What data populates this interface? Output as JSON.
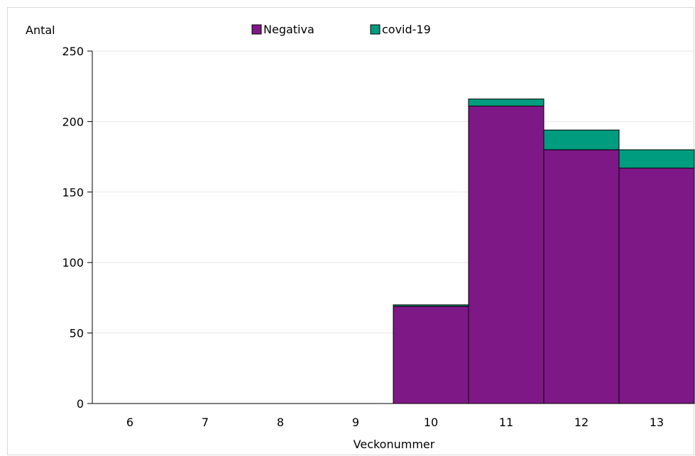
{
  "chart_data": {
    "type": "bar",
    "stacked": true,
    "ylabel": "Antal",
    "xlabel": "Veckonummer",
    "ylim": [
      0,
      250
    ],
    "yticks": [
      0,
      50,
      100,
      150,
      200,
      250
    ],
    "grid": true,
    "legend_position": "top-center",
    "categories": [
      "6",
      "7",
      "8",
      "9",
      "10",
      "11",
      "12",
      "13"
    ],
    "series": [
      {
        "name": "Negativa",
        "color": "#7f1887",
        "values": [
          0,
          0,
          0,
          0,
          69,
          211,
          180,
          167
        ]
      },
      {
        "name": "covid-19",
        "color": "#009c7f",
        "values": [
          0,
          0,
          0,
          0,
          1,
          5,
          14,
          13
        ]
      }
    ]
  }
}
